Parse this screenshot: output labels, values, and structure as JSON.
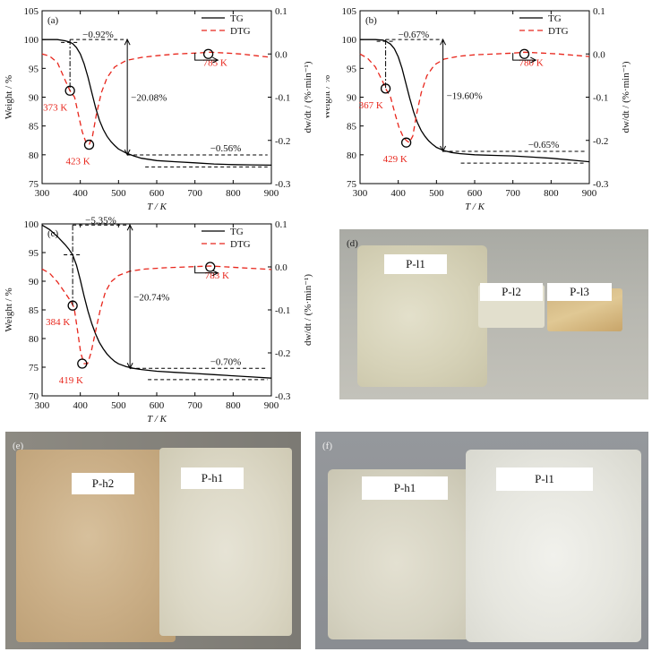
{
  "colors": {
    "tg": "#000000",
    "dtg": "#e8261c",
    "annot": "#e8261c"
  },
  "chart_data": [
    {
      "type": "line",
      "panel_label": "(a)",
      "xlabel": "T / K",
      "ylabel_left": "Weight / %",
      "ylabel_right": "dw/dt / (%·min⁻¹)",
      "xlim": [
        300,
        900
      ],
      "ylim_left": [
        75,
        105
      ],
      "ylim_right": [
        -0.3,
        0.1
      ],
      "x_ticks": [
        "300",
        "400",
        "500",
        "600",
        "700",
        "800",
        "900"
      ],
      "y_ticks_left": [
        "75",
        "80",
        "85",
        "90",
        "95",
        "100",
        "105"
      ],
      "y_ticks_right": [
        "-0.3",
        "-0.2",
        "-0.1",
        "0.0",
        "0.1"
      ],
      "legend": [
        {
          "name": "TG"
        },
        {
          "name": "DTG"
        }
      ],
      "series": [
        {
          "name": "TG",
          "axis": "left",
          "x": [
            300,
            340,
            360,
            370,
            380,
            390,
            400,
            410,
            420,
            430,
            440,
            450,
            460,
            470,
            480,
            490,
            500,
            520,
            540,
            560,
            600,
            650,
            700,
            750,
            800,
            850,
            900
          ],
          "y": [
            100,
            100,
            99.8,
            99.6,
            99.3,
            98.6,
            97.5,
            95.8,
            93.5,
            90.8,
            88.2,
            86.0,
            84.4,
            83.2,
            82.3,
            81.6,
            81.0,
            80.3,
            79.8,
            79.4,
            79.0,
            78.8,
            78.6,
            78.4,
            78.3,
            78.25,
            78.2
          ]
        },
        {
          "name": "DTG",
          "axis": "right",
          "x": [
            300,
            320,
            340,
            360,
            373,
            385,
            395,
            405,
            415,
            423,
            432,
            442,
            455,
            470,
            490,
            520,
            560,
            600,
            650,
            700,
            740,
            785,
            820,
            860,
            900
          ],
          "y": [
            0.0,
            -0.005,
            -0.02,
            -0.06,
            -0.085,
            -0.1,
            -0.14,
            -0.18,
            -0.205,
            -0.21,
            -0.19,
            -0.14,
            -0.09,
            -0.055,
            -0.03,
            -0.015,
            -0.008,
            -0.004,
            0.0,
            0.002,
            0.004,
            0.002,
            0.0,
            -0.004,
            -0.008
          ]
        }
      ],
      "peaks": [
        {
          "label": "373 K",
          "x": 373,
          "y": -0.085
        },
        {
          "label": "423 K",
          "x": 423,
          "y": -0.21
        },
        {
          "label": "785 K",
          "x": 735,
          "y": 0.0
        }
      ],
      "mass_loss_labels": [
        "−0.92%",
        "−20.08%",
        "−0.56%"
      ]
    },
    {
      "type": "line",
      "panel_label": "(b)",
      "xlabel": "T / K",
      "ylabel_left": "Weight / %",
      "ylabel_right": "dw/dt / (%·min⁻¹)",
      "xlim": [
        300,
        900
      ],
      "ylim_left": [
        75,
        105
      ],
      "ylim_right": [
        -0.3,
        0.1
      ],
      "x_ticks": [
        "300",
        "400",
        "500",
        "600",
        "700",
        "800",
        "900"
      ],
      "y_ticks_left": [
        "75",
        "80",
        "85",
        "90",
        "95",
        "100",
        "105"
      ],
      "y_ticks_right": [
        "-0.3",
        "-0.2",
        "-0.1",
        "0.0",
        "0.1"
      ],
      "legend": [
        {
          "name": "TG"
        },
        {
          "name": "DTG"
        }
      ],
      "series": [
        {
          "name": "TG",
          "axis": "left",
          "x": [
            300,
            340,
            360,
            370,
            380,
            390,
            400,
            410,
            420,
            430,
            440,
            450,
            460,
            470,
            480,
            490,
            500,
            520,
            540,
            560,
            600,
            650,
            700,
            750,
            800,
            850,
            900
          ],
          "y": [
            100,
            100,
            99.9,
            99.6,
            99.2,
            98.4,
            97.0,
            95.0,
            92.4,
            89.8,
            87.5,
            85.6,
            84.2,
            83.2,
            82.4,
            81.8,
            81.3,
            80.7,
            80.4,
            80.2,
            80.0,
            79.9,
            79.8,
            79.6,
            79.4,
            79.1,
            78.8
          ]
        },
        {
          "name": "DTG",
          "axis": "right",
          "x": [
            300,
            320,
            340,
            360,
            367,
            380,
            392,
            402,
            412,
            421,
            429,
            438,
            448,
            460,
            475,
            495,
            520,
            560,
            600,
            650,
            700,
            730,
            780,
            820,
            860,
            900
          ],
          "y": [
            0.0,
            -0.01,
            -0.03,
            -0.065,
            -0.08,
            -0.1,
            -0.14,
            -0.17,
            -0.19,
            -0.2,
            -0.205,
            -0.19,
            -0.14,
            -0.09,
            -0.05,
            -0.025,
            -0.012,
            -0.005,
            -0.002,
            0.0,
            0.002,
            0.004,
            0.002,
            0.0,
            -0.003,
            -0.006
          ]
        }
      ],
      "peaks": [
        {
          "label": "367 K",
          "x": 367,
          "y": -0.08
        },
        {
          "label": "429 K",
          "x": 421,
          "y": -0.205
        },
        {
          "label": "780 K",
          "x": 730,
          "y": 0.0
        }
      ],
      "mass_loss_labels": [
        "−0.67%",
        "−19.60%",
        "−0.65%"
      ]
    },
    {
      "type": "line",
      "panel_label": "(c)",
      "xlabel": "T / K",
      "ylabel_left": "Weight / %",
      "ylabel_right": "dw/dt / (%·min⁻¹)",
      "xlim": [
        300,
        900
      ],
      "ylim_left": [
        70,
        100
      ],
      "ylim_right": [
        -0.3,
        0.1
      ],
      "x_ticks": [
        "300",
        "400",
        "500",
        "600",
        "700",
        "800",
        "900"
      ],
      "y_ticks_left": [
        "70",
        "75",
        "80",
        "85",
        "90",
        "95",
        "100"
      ],
      "y_ticks_right": [
        "-0.3",
        "-0.2",
        "-0.1",
        "0.0",
        "0.1"
      ],
      "legend": [
        {
          "name": "TG"
        },
        {
          "name": "DTG"
        }
      ],
      "series": [
        {
          "name": "TG",
          "axis": "left",
          "x": [
            300,
            320,
            340,
            360,
            370,
            380,
            390,
            400,
            410,
            420,
            430,
            440,
            450,
            460,
            470,
            480,
            490,
            500,
            520,
            540,
            560,
            600,
            650,
            700,
            750,
            800,
            850,
            900
          ],
          "y": [
            99.8,
            99.0,
            97.8,
            96.4,
            95.6,
            94.6,
            92.8,
            90.2,
            87.4,
            84.8,
            82.6,
            80.8,
            79.3,
            78.2,
            77.3,
            76.6,
            76.0,
            75.6,
            75.1,
            74.8,
            74.6,
            74.3,
            74.1,
            73.9,
            73.7,
            73.5,
            73.3,
            73.1
          ]
        },
        {
          "name": "DTG",
          "axis": "right",
          "x": [
            300,
            320,
            340,
            360,
            375,
            384,
            393,
            401,
            410,
            419,
            428,
            440,
            452,
            465,
            480,
            500,
            530,
            570,
            620,
            680,
            740,
            783,
            820,
            860,
            900
          ],
          "y": [
            -0.005,
            -0.015,
            -0.035,
            -0.06,
            -0.08,
            -0.095,
            -0.15,
            -0.2,
            -0.225,
            -0.225,
            -0.2,
            -0.15,
            -0.1,
            -0.06,
            -0.035,
            -0.02,
            -0.01,
            -0.005,
            -0.002,
            0.0,
            0.002,
            0.0,
            -0.002,
            -0.004,
            -0.006
          ]
        }
      ],
      "peaks": [
        {
          "label": "384 K",
          "x": 380,
          "y": -0.09
        },
        {
          "label": "419 K",
          "x": 405,
          "y": -0.225
        },
        {
          "label": "783 K",
          "x": 740,
          "y": 0.0
        }
      ],
      "mass_loss_labels": [
        "−5.35%",
        "−20.74%",
        "−0.70%"
      ]
    }
  ],
  "photos": [
    {
      "panel_label": "(d)",
      "labels": [
        "P-l1",
        "P-l2",
        "P-l3"
      ]
    },
    {
      "panel_label": "(e)",
      "labels": [
        "P-h2",
        "P-h1"
      ]
    },
    {
      "panel_label": "(f)",
      "labels": [
        "P-h1",
        "P-l1"
      ]
    }
  ]
}
